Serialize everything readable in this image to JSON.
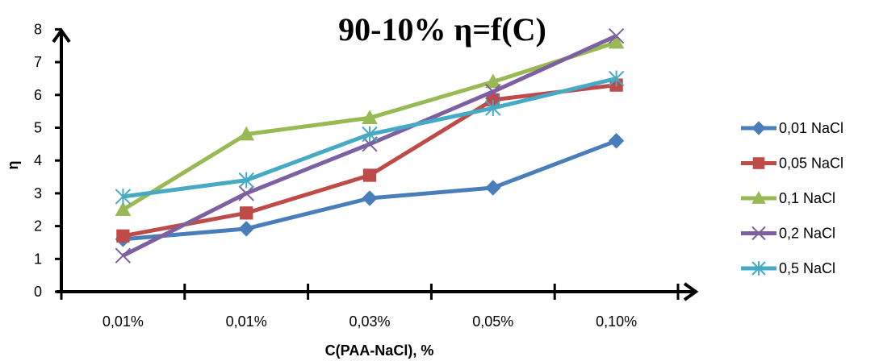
{
  "chart_data": {
    "type": "line",
    "title": "90-10% η=f(C)",
    "xlabel": "C(PAA-NaCl), %",
    "ylabel": "η",
    "categories": [
      "0,01%",
      "0,01%",
      "0,03%",
      "0,05%",
      "0,10%"
    ],
    "ylim": [
      0,
      8
    ],
    "yticks": [
      0,
      1,
      2,
      3,
      4,
      5,
      6,
      7,
      8
    ],
    "grid": false,
    "legend_position": "right",
    "series": [
      {
        "name": "0,01 NaCl",
        "values": [
          1.6,
          1.92,
          2.85,
          3.17,
          4.6
        ],
        "color": "#4A7EBB",
        "marker": "diamond"
      },
      {
        "name": "0,05 NaCl",
        "values": [
          1.7,
          2.4,
          3.55,
          5.85,
          6.3
        ],
        "color": "#BE4B48",
        "marker": "square"
      },
      {
        "name": "0,1 NaCl",
        "values": [
          2.5,
          4.8,
          5.3,
          6.4,
          7.6
        ],
        "color": "#98B954",
        "marker": "triangle"
      },
      {
        "name": "0,2 NaCl",
        "values": [
          1.1,
          3.0,
          4.5,
          6.1,
          7.8
        ],
        "color": "#7D60A0",
        "marker": "x"
      },
      {
        "name": "0,5 NaCl",
        "values": [
          2.9,
          3.4,
          4.8,
          5.6,
          6.5
        ],
        "color": "#46AAC5",
        "marker": "star"
      }
    ]
  }
}
